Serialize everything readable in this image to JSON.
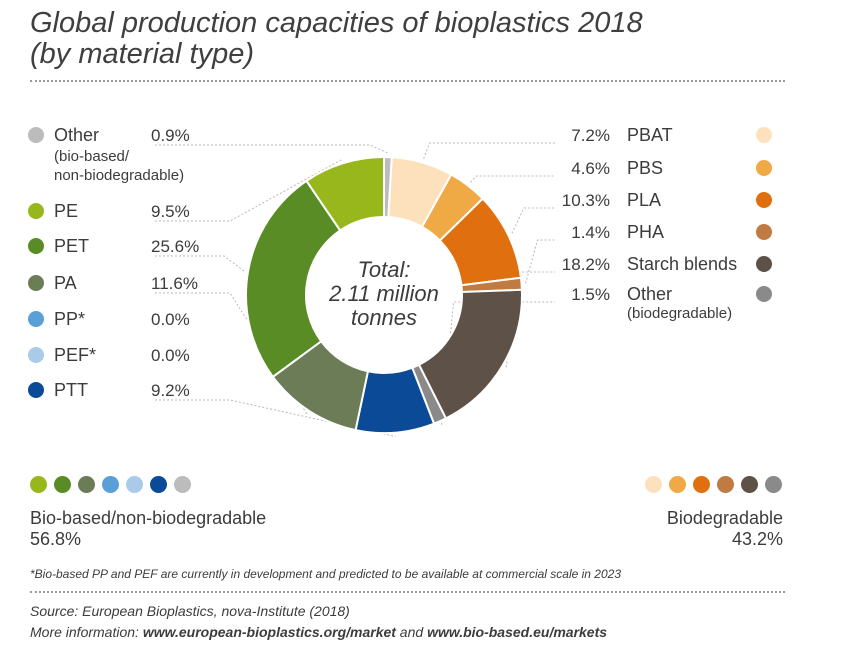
{
  "title_line1": "Global production capacities of bioplastics 2018",
  "title_line2": "(by material type)",
  "chart_data": {
    "type": "pie",
    "donut": true,
    "center_label": [
      "Total:",
      "2.11 million",
      "tonnes"
    ],
    "slices": [
      {
        "label": "Other",
        "sub": [
          "(bio-based/",
          "non-biodegradable)"
        ],
        "value": 0.9,
        "display": "0.9%",
        "color": "#bcbcbc",
        "group": "bio-based"
      },
      {
        "label": "PBAT",
        "sub": [],
        "value": 7.2,
        "display": "7.2%",
        "color": "#fde1bd",
        "group": "biodegradable"
      },
      {
        "label": "PBS",
        "sub": [],
        "value": 4.6,
        "display": "4.6%",
        "color": "#efaa45",
        "group": "biodegradable"
      },
      {
        "label": "PLA",
        "sub": [],
        "value": 10.3,
        "display": "10.3%",
        "color": "#e0700f",
        "group": "biodegradable"
      },
      {
        "label": "PHA",
        "sub": [],
        "value": 1.4,
        "display": "1.4%",
        "color": "#c07b43",
        "group": "biodegradable"
      },
      {
        "label": "Starch blends",
        "sub": [],
        "value": 18.2,
        "display": "18.2%",
        "color": "#5e5147",
        "group": "biodegradable"
      },
      {
        "label": "Other",
        "sub": [
          "(biodegradable)"
        ],
        "value": 1.5,
        "display": "1.5%",
        "color": "#8a8a8a",
        "group": "biodegradable"
      },
      {
        "label": "PTT",
        "sub": [],
        "value": 9.2,
        "display": "9.2%",
        "color": "#0b4a97",
        "group": "bio-based"
      },
      {
        "label": "PA",
        "sub": [],
        "value": 11.6,
        "display": "11.6%",
        "color": "#6b7c56",
        "group": "bio-based"
      },
      {
        "label": "PET",
        "sub": [],
        "value": 25.6,
        "display": "25.6%",
        "color": "#5a8c25",
        "group": "bio-based"
      },
      {
        "label": "PE",
        "sub": [],
        "value": 9.5,
        "display": "9.5%",
        "color": "#97b71c",
        "group": "bio-based"
      }
    ],
    "legend_left_zero": [
      {
        "label": "PP*",
        "display": "0.0%",
        "color": "#5a9fd8"
      },
      {
        "label": "PEF*",
        "display": "0.0%",
        "color": "#a9cbe9"
      }
    ]
  },
  "groups": {
    "bio_based": {
      "label": "Bio-based/non-biodegradable",
      "share": "56.8%"
    },
    "biodegradable": {
      "label": "Biodegradable",
      "share": "43.2%"
    }
  },
  "dots_left": [
    "#97b71c",
    "#5a8c25",
    "#6b7c56",
    "#5a9fd8",
    "#a9cbe9",
    "#0b4a97",
    "#bcbcbc"
  ],
  "dots_right": [
    "#fde1bd",
    "#efaa45",
    "#e0700f",
    "#c07b43",
    "#5e5147",
    "#8a8a8a"
  ],
  "footnote": "*Bio-based PP and PEF are currently in development and predicted to be available at commercial scale in 2023",
  "source": {
    "line1": "Source: European Bioplastics, nova-Institute (2018)",
    "line2_prefix": "More information: ",
    "link1": "www.european-bioplastics.org/market",
    "line2_mid": " and ",
    "link2": "www.bio-based.eu/markets"
  }
}
